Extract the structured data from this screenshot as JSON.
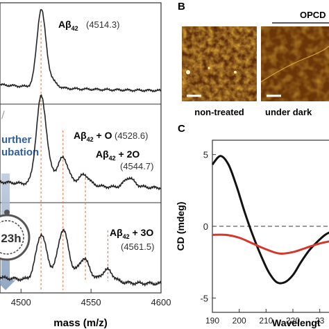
{
  "panel_b": {
    "letter": "B",
    "header": "OPCD",
    "images": [
      {
        "caption": "non-treated"
      },
      {
        "caption": "under dark"
      }
    ]
  },
  "panel_c": {
    "letter": "C"
  },
  "side_note": {
    "line1": "urther",
    "line2": "ubation",
    "time": "23h"
  },
  "colors": {
    "ms_line": "#222222",
    "ref_line": "#e06a40",
    "cd_black": "#111111",
    "cd_red": "#d6372b",
    "afm_dark": "#5a2a0a",
    "afm_light": "#f0c040",
    "arrow": "#8aa6c8",
    "side_text": "#2f5f9a"
  },
  "chart_data": [
    {
      "type": "line",
      "panel": "A",
      "xlabel": "mass (m/z)",
      "xlim": [
        4485,
        4600
      ],
      "xticks": [
        "4500",
        "4550",
        "4600"
      ],
      "stacked_traces": [
        {
          "annotations": [
            {
              "label_main": "Aβ",
              "label_sub": "42",
              "label_tail": "",
              "mass": "(4514.3)"
            }
          ],
          "peaks": [
            4514.3
          ]
        },
        {
          "annotations": [
            {
              "label_main": "Aβ",
              "label_sub": "42",
              "label_tail": " + O",
              "mass": "(4528.6)"
            },
            {
              "label_main": "Aβ",
              "label_sub": "42",
              "label_tail": " + 2O",
              "mass": "(4544.7)"
            }
          ],
          "peaks": [
            4514.3,
            4530,
            4545,
            4577
          ]
        },
        {
          "annotations": [
            {
              "label_main": "Aβ",
              "label_sub": "42",
              "label_tail": " + 3O",
              "mass": "(4561.5)"
            }
          ],
          "peaks": [
            4514.3,
            4530,
            4545,
            4561.5
          ]
        }
      ],
      "reference_lines": [
        4514.3,
        4530,
        4546,
        4562
      ]
    },
    {
      "type": "line",
      "panel": "C",
      "xlabel": "Wavelengt",
      "ylabel": "CD (mdeg)",
      "xlim": [
        190,
        235
      ],
      "ylim": [
        -6,
        6
      ],
      "xticks": [
        "190",
        "200",
        "210",
        "220",
        "23"
      ],
      "yticks": [
        "5",
        "0",
        "-5"
      ],
      "zero_line": true,
      "series": [
        {
          "color": "#111111",
          "x": [
            190,
            193,
            196,
            199,
            202,
            205,
            208,
            211,
            214,
            217,
            220,
            223,
            226,
            229,
            232,
            235
          ],
          "y": [
            4.3,
            4.9,
            4.3,
            2.8,
            1.0,
            -0.6,
            -2.0,
            -3.2,
            -3.9,
            -3.9,
            -3.4,
            -2.5,
            -1.7,
            -1.1,
            -0.6,
            -0.3
          ]
        },
        {
          "color": "#d6372b",
          "x": [
            190,
            195,
            200,
            205,
            210,
            215,
            220,
            225,
            230,
            235
          ],
          "y": [
            -0.6,
            -0.6,
            -0.8,
            -1.2,
            -1.6,
            -1.9,
            -1.8,
            -1.5,
            -1.2,
            -1.0
          ]
        }
      ]
    }
  ]
}
